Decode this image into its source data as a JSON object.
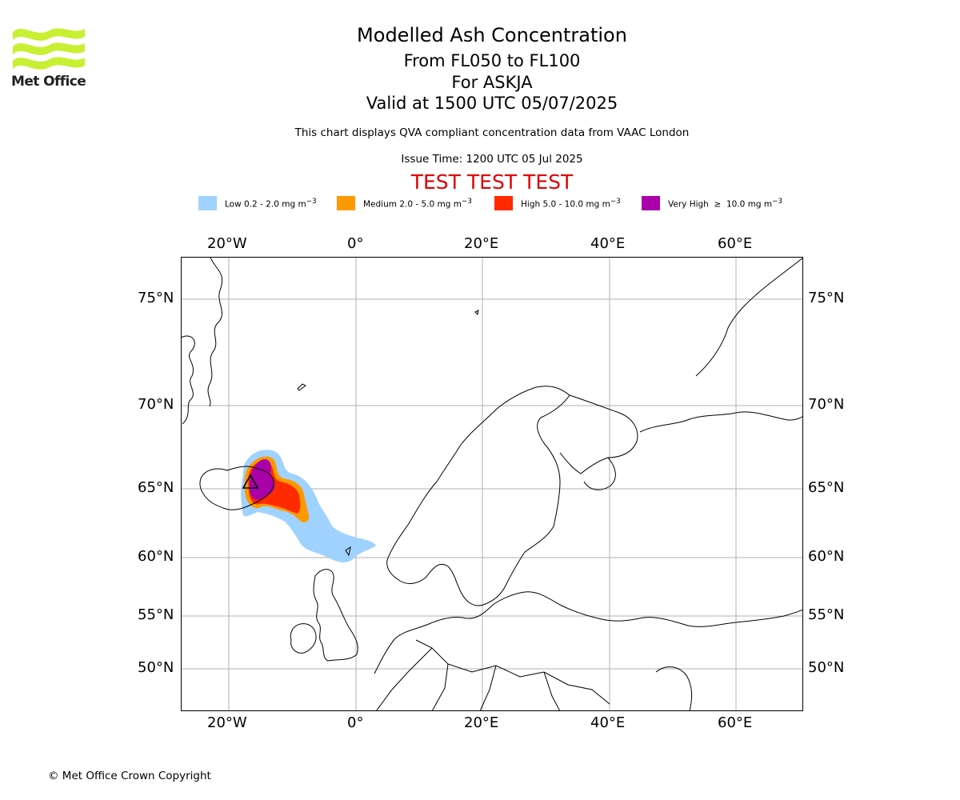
{
  "header": {
    "logo_text": "Met Office",
    "title": "Modelled Ash Concentration",
    "subtitle_levels": "From FL050 to FL100",
    "subtitle_volcano": "For ASKJA",
    "subtitle_valid": "Valid at 1500 UTC 05/07/2025",
    "qva_note": "This chart displays QVA compliant concentration data from VAAC London",
    "issue_time": "Issue Time: 1200 UTC 05 Jul 2025",
    "test_banner": "TEST TEST TEST",
    "test_banner_color": "#e00000"
  },
  "legend": [
    {
      "label_html": "Low 0.2 - 2.0 mg m<sup>−3</sup>",
      "color": "#a0d2ff"
    },
    {
      "label_html": "Medium 2.0 - 5.0 mg m<sup>−3</sup>",
      "color": "#ff9900"
    },
    {
      "label_html": "High 5.0 - 10.0 mg m<sup>−3</sup>",
      "color": "#ff2a00"
    },
    {
      "label_html": "Very High &nbsp;≥&nbsp; 10.0 mg m<sup>−3</sup>",
      "color": "#aa00aa"
    }
  ],
  "map": {
    "lon_labels": [
      "20°W",
      "0°",
      "20°E",
      "40°E",
      "60°E"
    ],
    "lat_labels": [
      "75°N",
      "70°N",
      "65°N",
      "60°N",
      "55°N",
      "50°N"
    ],
    "volcano_marker": "triangle",
    "gridline_color": "#b0b0b0",
    "coastline_color": "#000000"
  },
  "footer": {
    "copyright": "© Met Office Crown Copyright"
  }
}
